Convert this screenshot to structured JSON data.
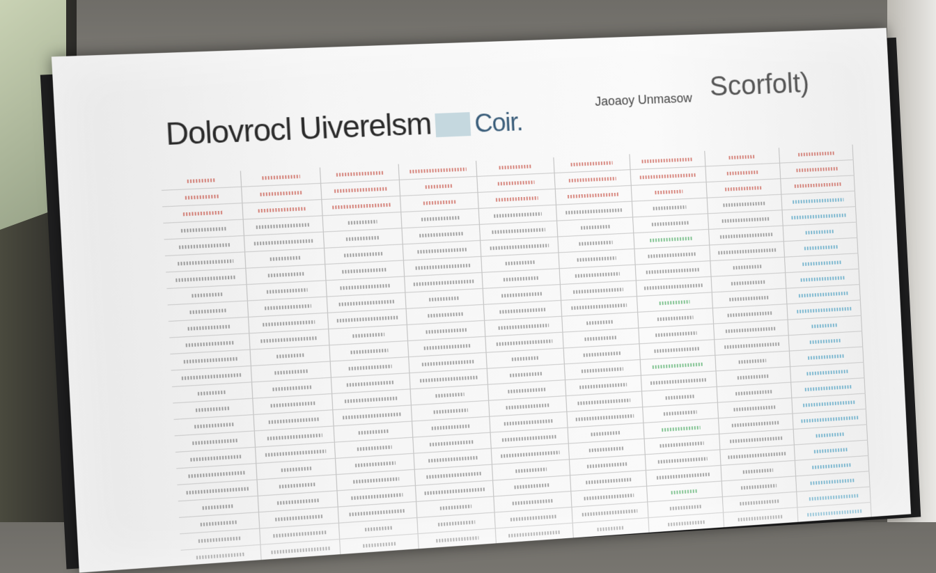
{
  "document": {
    "title": "Dolovrocl Uiverelsm",
    "title_logo_text": "Coir.",
    "tagline": "Jaoaoy Unmasow",
    "brand": "Scorfolt)",
    "table": {
      "rows": 24,
      "columns": 9
    }
  }
}
